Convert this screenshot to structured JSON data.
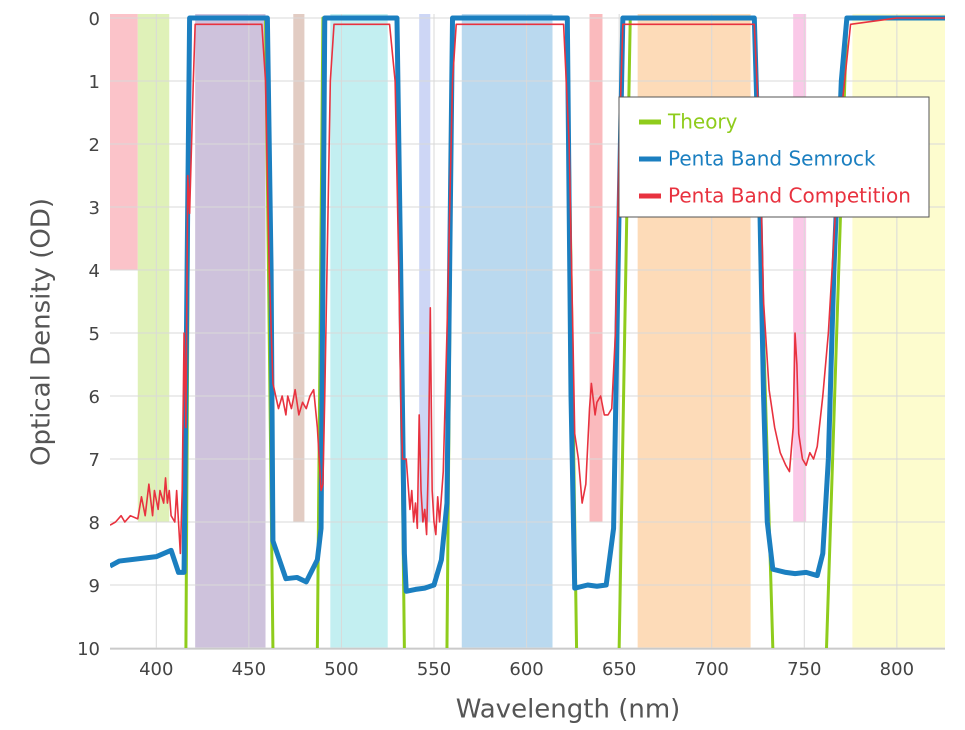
{
  "chart_data": {
    "type": "line",
    "xlabel": "Wavelength (nm)",
    "ylabel": "Optical Density (OD)",
    "xlim": [
      375,
      826
    ],
    "ylim": [
      0,
      10
    ],
    "invert_y": true,
    "xticks": [
      400,
      450,
      500,
      550,
      600,
      650,
      700,
      750,
      800
    ],
    "yticks": [
      0,
      1,
      2,
      3,
      4,
      5,
      6,
      7,
      8,
      9,
      10
    ],
    "grid": true,
    "legend": "upper right",
    "bands": [
      {
        "x": [
          375,
          390
        ],
        "y": [
          0,
          4
        ],
        "color": "#fbbcc3"
      },
      {
        "x": [
          390,
          407
        ],
        "y": [
          0,
          8
        ],
        "color": "#dcf0b0"
      },
      {
        "x": [
          421,
          459
        ],
        "y": [
          0,
          10
        ],
        "color": "#c9bbd8"
      },
      {
        "x": [
          474,
          480
        ],
        "y": [
          0,
          8
        ],
        "color": "#dfc6bc"
      },
      {
        "x": [
          494,
          525
        ],
        "y": [
          0,
          10
        ],
        "color": "#bcedef"
      },
      {
        "x": [
          542,
          548
        ],
        "y": [
          0,
          8
        ],
        "color": "#c8d2f4"
      },
      {
        "x": [
          565,
          614
        ],
        "y": [
          0,
          10
        ],
        "color": "#b3d5ed"
      },
      {
        "x": [
          634,
          641
        ],
        "y": [
          0,
          8
        ],
        "color": "#fab2b6"
      },
      {
        "x": [
          660,
          721
        ],
        "y": [
          0,
          10
        ],
        "color": "#fdd7b0"
      },
      {
        "x": [
          744,
          751
        ],
        "y": [
          0,
          8
        ],
        "color": "#f9c3e6"
      },
      {
        "x": [
          776,
          826
        ],
        "y": [
          0,
          10
        ],
        "color": "#fdfcc9"
      }
    ],
    "series": [
      {
        "name": "Theory",
        "color": "#8fcc1c",
        "width": 3,
        "x": [
          416,
          418,
          459,
          463,
          475,
          487,
          490,
          530,
          534,
          545,
          557,
          560,
          622,
          627,
          640,
          650,
          656,
          723,
          733,
          750,
          762,
          773,
          826
        ],
        "values": [
          10,
          0,
          0,
          10,
          null,
          10,
          0,
          0,
          10,
          null,
          10,
          0,
          0,
          10,
          null,
          10,
          0,
          0,
          10,
          null,
          10,
          0,
          0
        ]
      },
      {
        "name": "Penta Band Semrock",
        "color": "#1b7fc0",
        "width": 5,
        "x": [
          375,
          380,
          400,
          408,
          412,
          415,
          418,
          460,
          462,
          463,
          470,
          476,
          481,
          487,
          489,
          491,
          530,
          532,
          534,
          535,
          540,
          545,
          550,
          554,
          557,
          560,
          622,
          624,
          626,
          633,
          638,
          643,
          647,
          650,
          652,
          723,
          726,
          728,
          730,
          733,
          740,
          745,
          751,
          757,
          760,
          763,
          766,
          770,
          773,
          826
        ],
        "values": [
          8.7,
          8.62,
          8.55,
          8.45,
          8.8,
          8.8,
          0,
          0,
          4,
          8.3,
          8.9,
          8.88,
          8.95,
          8.6,
          8.1,
          0,
          0,
          4,
          8.5,
          9.1,
          9.07,
          9.05,
          9.0,
          8.6,
          7.7,
          0,
          0,
          6,
          9.05,
          9.0,
          9.02,
          9.0,
          8.1,
          3,
          0,
          0,
          3,
          6,
          8,
          8.75,
          8.8,
          8.82,
          8.8,
          8.85,
          8.5,
          7,
          4,
          1,
          0,
          0
        ]
      },
      {
        "name": "Penta Band Competition",
        "color": "#e8323f",
        "width": 1.6,
        "x": [
          375,
          378,
          381,
          383,
          386,
          390,
          392,
          394,
          396,
          398,
          399,
          401,
          402,
          404,
          405,
          406,
          407,
          408,
          410,
          411,
          413,
          414,
          415,
          416,
          417,
          418,
          420,
          421,
          457,
          459,
          461,
          463,
          466,
          468,
          470,
          471,
          473,
          475,
          477,
          479,
          481,
          483,
          485,
          487,
          489,
          490,
          491,
          494,
          496,
          526,
          529,
          531,
          532,
          533,
          535,
          536,
          537,
          538,
          539,
          540,
          541,
          542,
          543,
          544,
          545,
          546,
          547,
          548,
          549,
          550,
          551,
          552,
          553,
          555,
          557,
          560,
          562,
          620,
          623,
          625,
          626,
          628,
          630,
          632,
          634,
          635,
          637,
          638,
          640,
          642,
          644,
          646,
          648,
          650,
          652,
          723,
          726,
          728,
          731,
          734,
          737,
          740,
          742,
          744,
          745,
          746,
          747,
          749,
          751,
          753,
          755,
          757,
          760,
          763,
          766,
          770,
          775,
          800,
          826
        ],
        "values": [
          8.05,
          8.0,
          7.9,
          8.0,
          7.9,
          7.95,
          7.6,
          7.9,
          7.4,
          7.9,
          7.5,
          7.8,
          7.5,
          7.7,
          7.3,
          7.7,
          7.5,
          7.9,
          8.0,
          7.5,
          8.5,
          7.5,
          5,
          6.5,
          2.5,
          3.1,
          1,
          0.1,
          0.1,
          1,
          4,
          5.8,
          6.2,
          6.0,
          6.3,
          6.0,
          6.2,
          5.9,
          6.3,
          6.1,
          6.2,
          6.0,
          5.9,
          6.5,
          7.5,
          7.4,
          6,
          1,
          0.1,
          0.1,
          1,
          4,
          6,
          7.0,
          7.0,
          7.4,
          7.8,
          7.5,
          8,
          7.7,
          8.1,
          6.3,
          7.5,
          8.0,
          7.8,
          8.2,
          7.0,
          4.6,
          7.5,
          8.0,
          8.2,
          7.6,
          8.0,
          7.2,
          5,
          1,
          0.1,
          0.1,
          2,
          5,
          6.6,
          7.0,
          7.7,
          7.4,
          6.2,
          5.8,
          6.3,
          6.1,
          6.0,
          6.3,
          6.3,
          6.2,
          5.0,
          2,
          0.1,
          0.1,
          2,
          4.5,
          5.9,
          6.5,
          6.9,
          7.1,
          7.2,
          6.5,
          5,
          5.5,
          6.6,
          7.0,
          7.1,
          6.9,
          7.0,
          6.8,
          6.0,
          5,
          3.5,
          1.5,
          0.1,
          0.0,
          0.0
        ]
      }
    ]
  }
}
